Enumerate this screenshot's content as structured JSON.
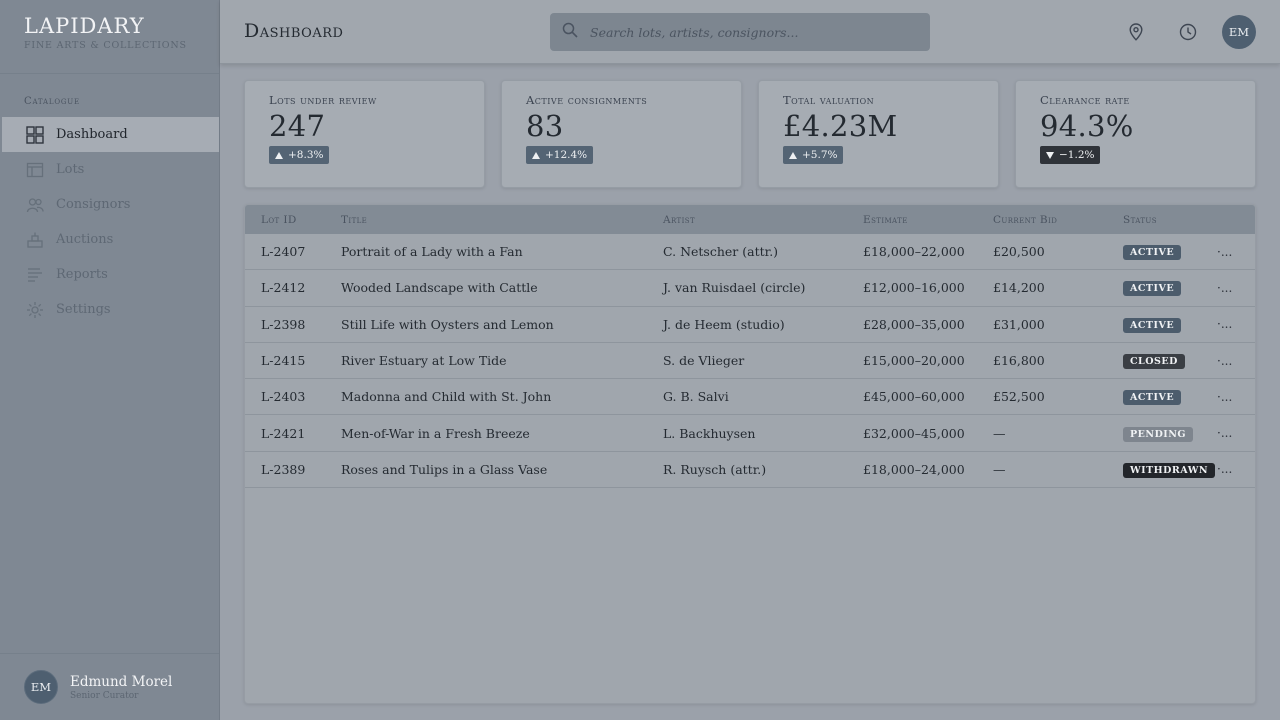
{
  "brand": {
    "name": "LAPIDARY",
    "subtitle": "Fine Arts & Collections"
  },
  "sidebar": {
    "section_label": "Catalogue",
    "items": [
      {
        "label": "Dashboard",
        "icon": "grid-icon",
        "active": true
      },
      {
        "label": "Lots",
        "icon": "browser-icon",
        "active": false
      },
      {
        "label": "Consignors",
        "icon": "users-icon",
        "active": false
      },
      {
        "label": "Auctions",
        "icon": "gavel-icon",
        "active": false
      },
      {
        "label": "Reports",
        "icon": "lines-icon",
        "active": false
      },
      {
        "label": "Settings",
        "icon": "gear-icon",
        "active": false
      }
    ],
    "user": {
      "initials": "EM",
      "name": "Edmund Morel",
      "role": "Senior Curator"
    }
  },
  "header": {
    "title": "Dashboard",
    "search_placeholder": "Search lots, artists, consignors...",
    "avatar_initials": "EM"
  },
  "stats": [
    {
      "label": "Lots under review",
      "value": "247",
      "delta": "+8.3%",
      "direction": "up"
    },
    {
      "label": "Active consignments",
      "value": "83",
      "delta": "+12.4%",
      "direction": "up"
    },
    {
      "label": "Total valuation",
      "value": "£4.23M",
      "delta": "+5.7%",
      "direction": "up"
    },
    {
      "label": "Clearance rate",
      "value": "94.3%",
      "delta": "−1.2%",
      "direction": "down"
    }
  ],
  "table": {
    "columns": [
      "Lot ID",
      "Title",
      "Artist",
      "Estimate",
      "Current Bid",
      "Status"
    ],
    "more_label": "·...",
    "rows": [
      {
        "id": "L-2407",
        "title": "Portrait of a Lady with a Fan",
        "artist": "C. Netscher (attr.)",
        "estimate": "£18,000–22,000",
        "bid": "£20,500",
        "status": "ACTIVE"
      },
      {
        "id": "L-2412",
        "title": "Wooded Landscape with Cattle",
        "artist": "J. van Ruisdael (circle)",
        "estimate": "£12,000–16,000",
        "bid": "£14,200",
        "status": "ACTIVE"
      },
      {
        "id": "L-2398",
        "title": "Still Life with Oysters and Lemon",
        "artist": "J. de Heem (studio)",
        "estimate": "£28,000–35,000",
        "bid": "£31,000",
        "status": "ACTIVE"
      },
      {
        "id": "L-2415",
        "title": "River Estuary at Low Tide",
        "artist": "S. de Vlieger",
        "estimate": "£15,000–20,000",
        "bid": "£16,800",
        "status": "CLOSED"
      },
      {
        "id": "L-2403",
        "title": "Madonna and Child with St. John",
        "artist": "G. B. Salvi",
        "estimate": "£45,000–60,000",
        "bid": "£52,500",
        "status": "ACTIVE"
      },
      {
        "id": "L-2421",
        "title": "Men-of-War in a Fresh Breeze",
        "artist": "L. Backhuysen",
        "estimate": "£32,000–45,000",
        "bid": "—",
        "status": "PENDING"
      },
      {
        "id": "L-2389",
        "title": "Roses and Tulips in a Glass Vase",
        "artist": "R. Ruysch (attr.)",
        "estimate": "£18,000–24,000",
        "bid": "—",
        "status": "WITHDRAWN"
      }
    ]
  }
}
